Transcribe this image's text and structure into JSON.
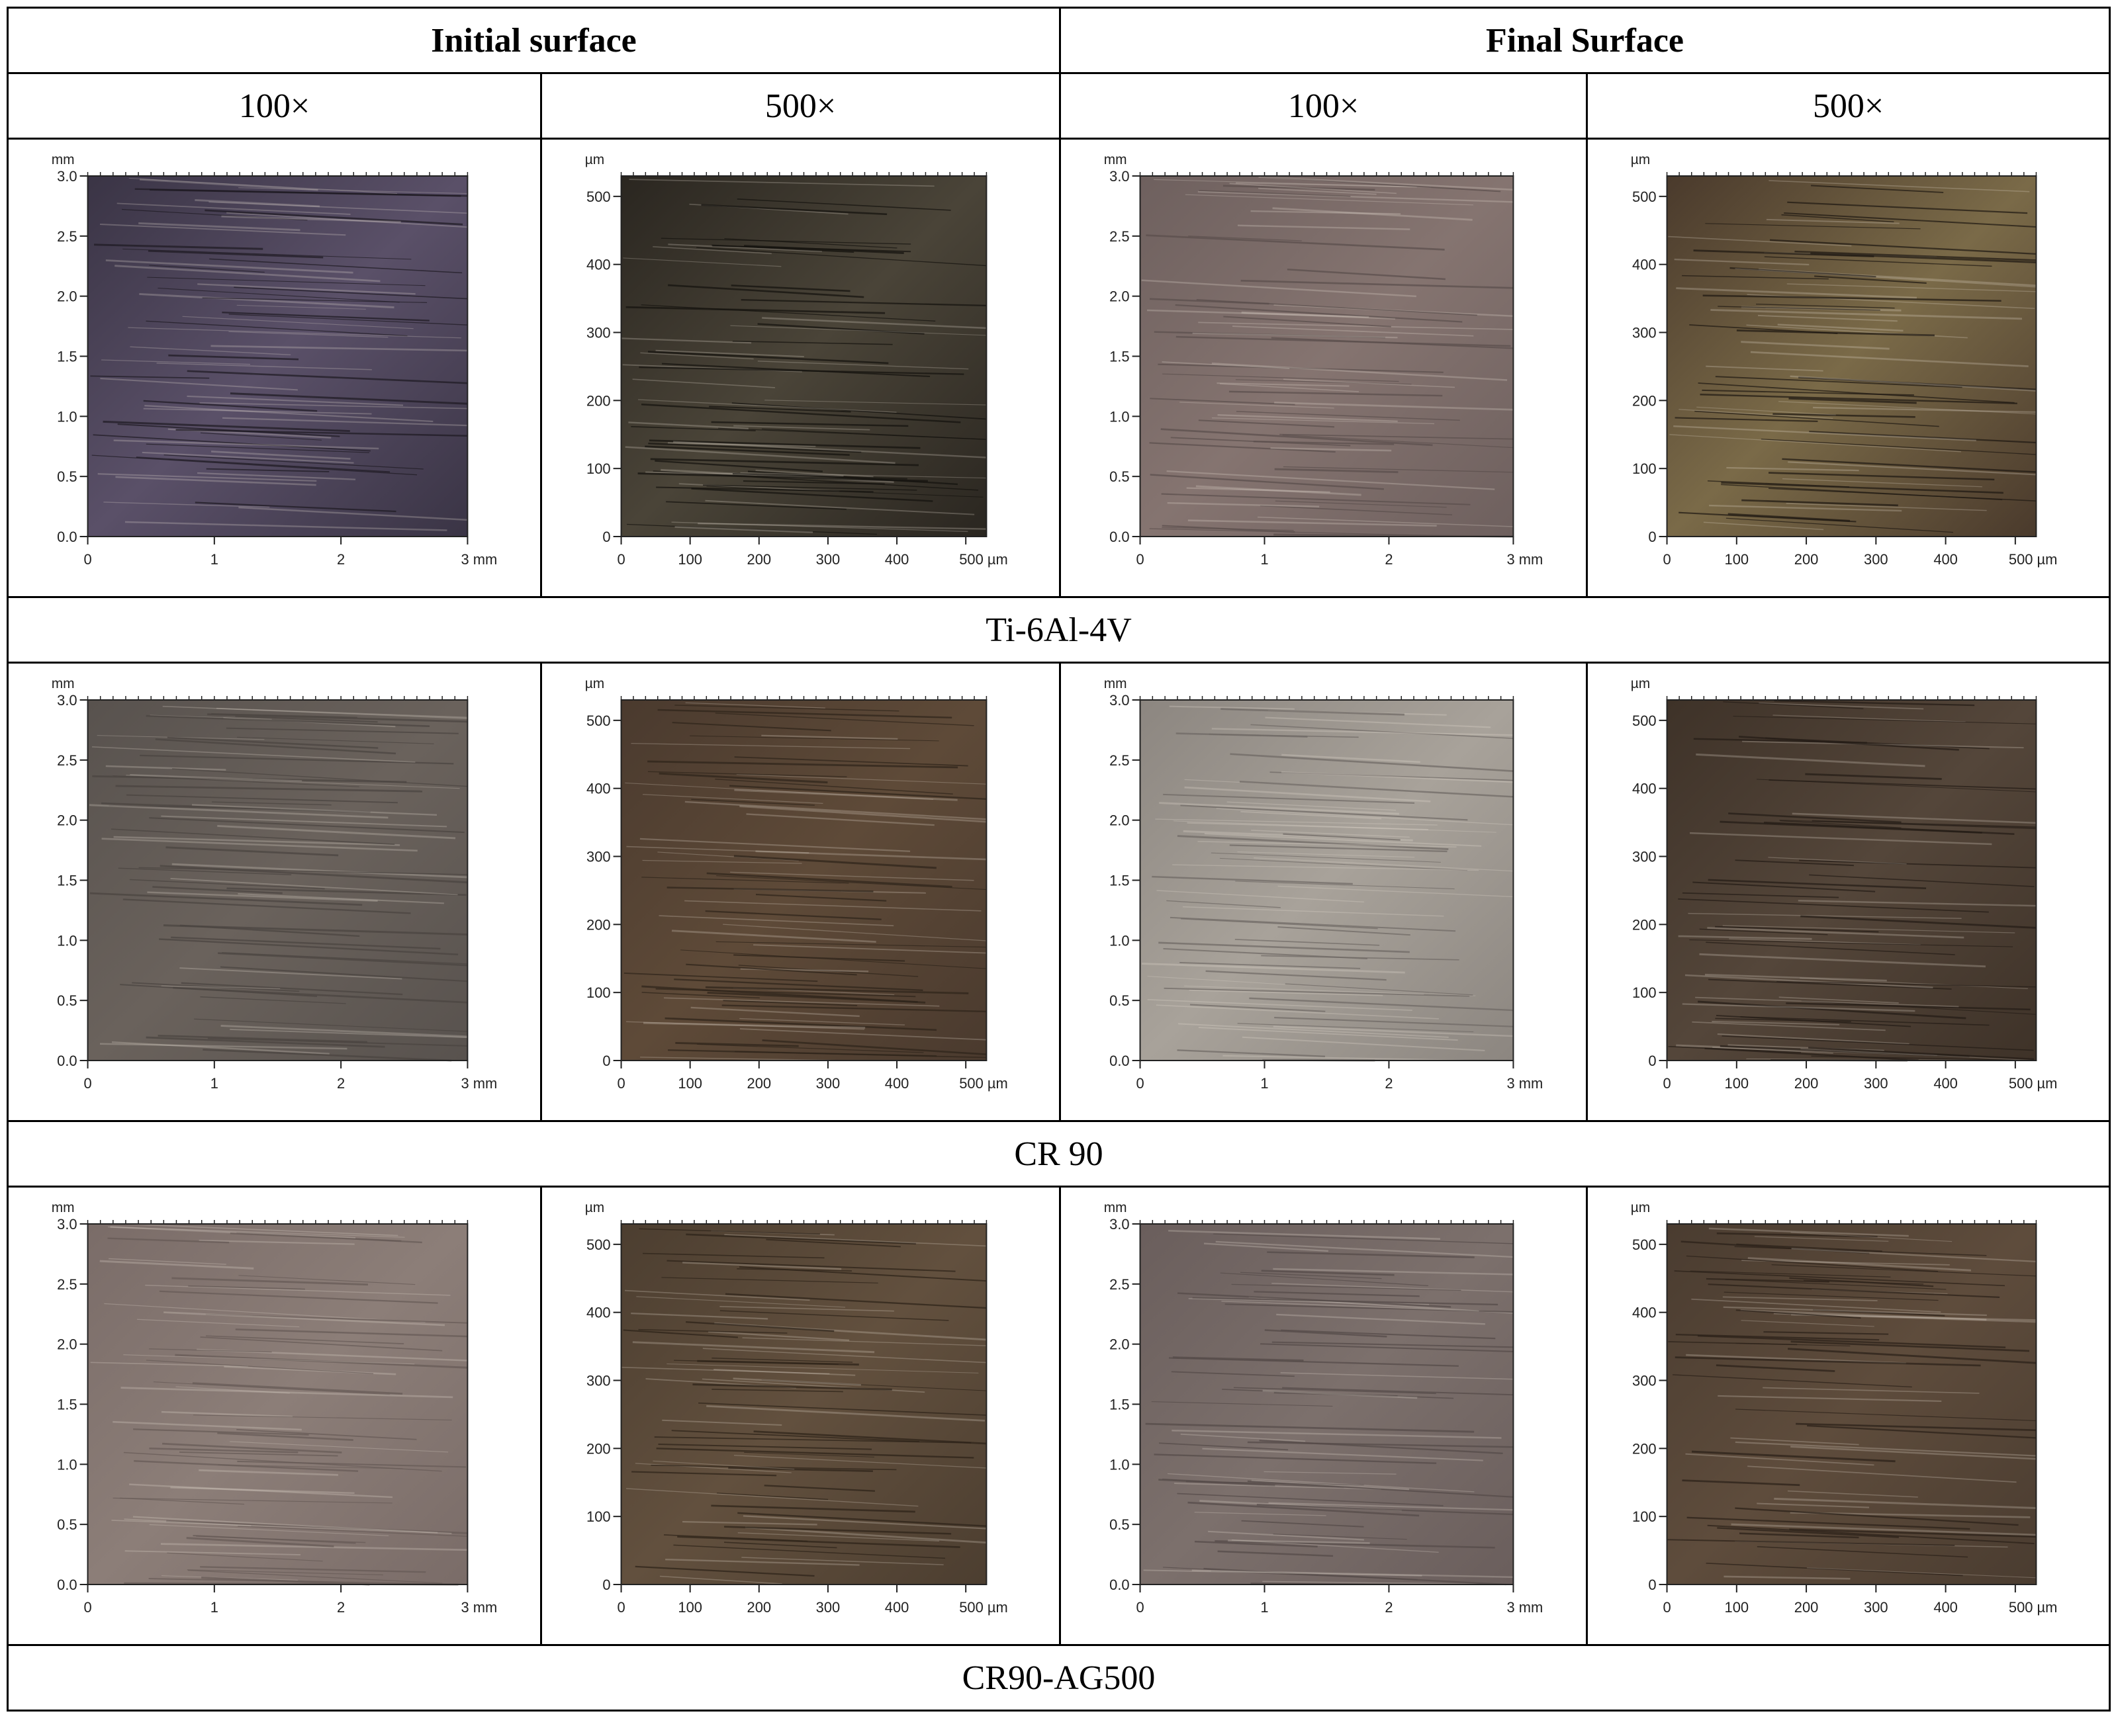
{
  "headers": {
    "initial": "Initial surface",
    "final": "Final Surface",
    "mags": [
      "100×",
      "500×",
      "100×",
      "500×"
    ]
  },
  "materials": [
    "Ti-6Al-4V",
    "CR 90",
    "CR90-AG500"
  ],
  "axes": {
    "mm": {
      "unit": "mm",
      "y_ticks": [
        "3.0",
        "2.5",
        "2.0",
        "1.5",
        "1.0",
        "0.5",
        "0.0"
      ],
      "x_ticks": [
        "0",
        "1",
        "2",
        "3 mm"
      ],
      "range": [
        0,
        3
      ]
    },
    "um": {
      "unit": "µm",
      "y_ticks": [
        "500",
        "400",
        "300",
        "200",
        "100",
        "0"
      ],
      "x_ticks": [
        "0",
        "100",
        "200",
        "300",
        "400",
        "500 µm"
      ],
      "range": [
        0,
        530
      ]
    }
  },
  "colors": {
    "ti_initial_100": [
      "#3a3445",
      "#5a5068",
      "#1e1a22"
    ],
    "ti_initial_500": [
      "#2a2620",
      "#4a4438",
      "#14120e"
    ],
    "ti_final_100": [
      "#6e605e",
      "#857470",
      "#5a4e4c"
    ],
    "ti_final_500": [
      "#4a3a2c",
      "#7a6a48",
      "#1e1812"
    ],
    "cr_initial_100": [
      "#58524e",
      "#6a625c",
      "#4a4440"
    ],
    "cr_initial_500": [
      "#4a3a2e",
      "#5e4a38",
      "#2e241a"
    ],
    "cr_final_100": [
      "#8c8680",
      "#a8a29a",
      "#6e6864"
    ],
    "cr_final_500": [
      "#3e3228",
      "#54463a",
      "#241c16"
    ],
    "ag_initial_100": [
      "#7a6c68",
      "#8c7e78",
      "#665a56"
    ],
    "ag_initial_500": [
      "#4c3e30",
      "#62503e",
      "#2c2218"
    ],
    "ag_final_100": [
      "#6a5e5c",
      "#7c706c",
      "#544a48"
    ],
    "ag_final_500": [
      "#4a3c30",
      "#5e4c3c",
      "#2a2018"
    ]
  }
}
